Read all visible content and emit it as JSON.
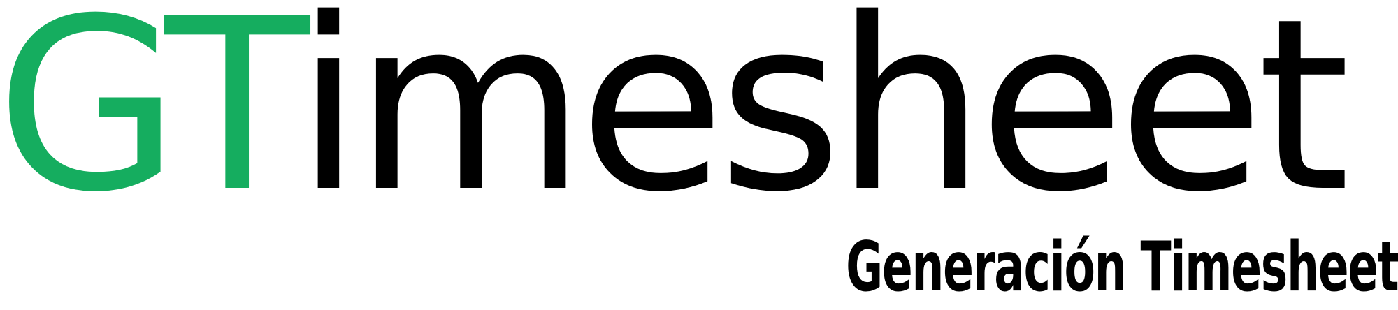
{
  "logo": {
    "wordmark_accent": "GT",
    "wordmark_rest": "imesheet",
    "tagline": "Generación Timesheet"
  },
  "colors": {
    "accent": "#15AD5F",
    "text": "#000000",
    "background": "#ffffff"
  }
}
